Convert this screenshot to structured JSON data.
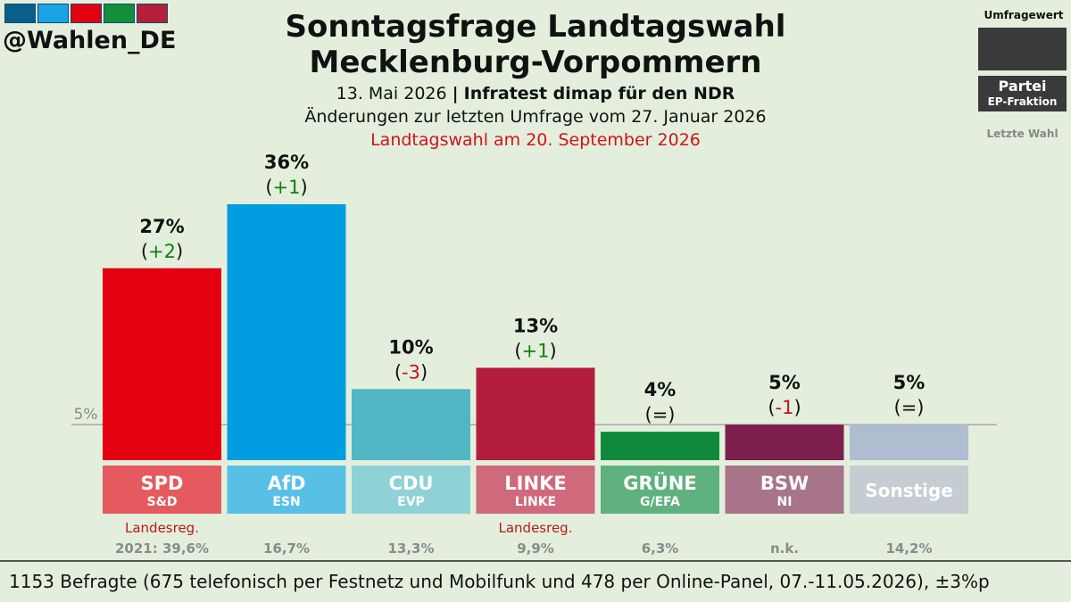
{
  "brand": {
    "handle": "@Wahlen_DE",
    "stripe_colors": [
      "#0a5f8a",
      "#1aa3e6",
      "#e3000f",
      "#138f3c",
      "#b41f3a"
    ]
  },
  "header": {
    "title_line1": "Sonntagsfrage Landtagswahl",
    "title_line2": "Mecklenburg-Vorpommern",
    "date": "13. Mai 2026",
    "separator": "|",
    "institute": "Infratest dimap für den NDR",
    "changes_note": "Änderungen zur letzten Umfrage vom 27. Januar 2026",
    "election_note": "Landtagswahl am 20. September 2026"
  },
  "legend": {
    "poll_value": "Umfragewert",
    "party": "Partei",
    "fraction": "EP-Fraktion",
    "last_election": "Letzte Wahl"
  },
  "chart_data": {
    "type": "bar",
    "threshold": {
      "value": 5,
      "label": "5%"
    },
    "ylim": [
      0,
      40
    ],
    "bars": [
      {
        "party": "SPD",
        "fraction": "S&D",
        "value": 27,
        "value_label": "27%",
        "change": "+2",
        "change_dir": "up",
        "color": "#e3000f",
        "box_color": "#e55a5e",
        "note": "Landesreg.",
        "last": "2021: 39,6%"
      },
      {
        "party": "AfD",
        "fraction": "ESN",
        "value": 36,
        "value_label": "36%",
        "change": "+1",
        "change_dir": "up",
        "color": "#009ee0",
        "box_color": "#58c0e6",
        "note": "",
        "last": "16,7%"
      },
      {
        "party": "CDU",
        "fraction": "EVP",
        "value": 10,
        "value_label": "10%",
        "change": "-3",
        "change_dir": "down",
        "color": "#52b5c4",
        "box_color": "#8ed1d6",
        "note": "",
        "last": "13,3%"
      },
      {
        "party": "LINKE",
        "fraction": "LINKE",
        "value": 13,
        "value_label": "13%",
        "change": "+1",
        "change_dir": "up",
        "color": "#b31e3c",
        "box_color": "#cf6a7c",
        "note": "Landesreg.",
        "last": "9,9%"
      },
      {
        "party": "GRÜNE",
        "fraction": "G/EFA",
        "value": 4,
        "value_label": "4%",
        "change": "=",
        "change_dir": "same",
        "color": "#0e8a3a",
        "box_color": "#5fb17e",
        "note": "",
        "last": "6,3%"
      },
      {
        "party": "BSW",
        "fraction": "NI",
        "value": 5,
        "value_label": "5%",
        "change": "-1",
        "change_dir": "down",
        "color": "#7c1f4c",
        "box_color": "#a87489",
        "note": "",
        "last": "n.k."
      },
      {
        "party": "Sonstige",
        "fraction": "",
        "value": 5,
        "value_label": "5%",
        "change": "=",
        "change_dir": "same",
        "color": "#b0bccf",
        "box_color": "#c5cdd2",
        "note": "",
        "last": "14,2%"
      }
    ],
    "colors": {
      "up": "#12800a",
      "down": "#c4121a",
      "same": "#111111",
      "note": "#b51a1a",
      "last": "#8a8a8a"
    }
  },
  "footer": {
    "sample": "1153 Befragte (675 telefonisch per Festnetz und Mobilfunk und 478 per Online-Panel, 07.-11.05.2026), ±3%p"
  }
}
